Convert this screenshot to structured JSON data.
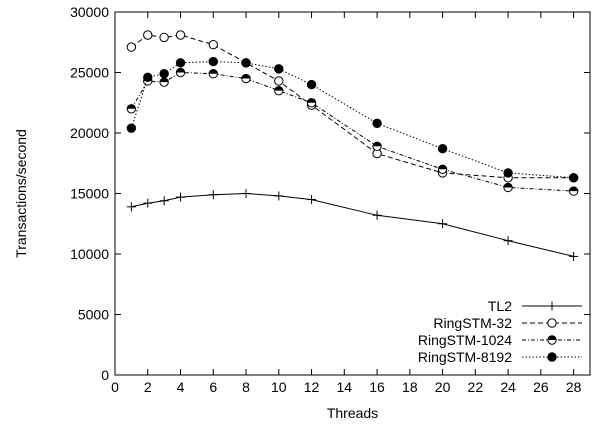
{
  "chart_data": {
    "type": "line",
    "title": "",
    "xlabel": "Threads",
    "ylabel": "Transactions/second",
    "xlim": [
      0,
      29
    ],
    "ylim": [
      0,
      30000
    ],
    "x_ticks": [
      0,
      2,
      4,
      6,
      8,
      10,
      12,
      14,
      16,
      18,
      20,
      22,
      24,
      26,
      28
    ],
    "y_ticks": [
      0,
      5000,
      10000,
      15000,
      20000,
      25000,
      30000
    ],
    "grid": false,
    "legend_position": "bottom-right",
    "x": [
      1,
      2,
      3,
      4,
      6,
      8,
      10,
      12,
      16,
      20,
      24,
      28
    ],
    "series": [
      {
        "name": "TL2",
        "marker": "plus",
        "line": "solid",
        "values": [
          13900,
          14200,
          14400,
          14700,
          14900,
          15000,
          14800,
          14500,
          13200,
          12500,
          11100,
          9800
        ]
      },
      {
        "name": "RingSTM-32",
        "marker": "open-circle",
        "line": "dashed",
        "values": [
          27100,
          28100,
          27900,
          28100,
          27300,
          25800,
          24300,
          22300,
          18300,
          16700,
          16300,
          16300
        ]
      },
      {
        "name": "RingSTM-1024",
        "marker": "half-circle",
        "line": "dashdot",
        "values": [
          22000,
          24300,
          24200,
          25000,
          24900,
          24500,
          23500,
          22500,
          18900,
          17000,
          15500,
          15200
        ]
      },
      {
        "name": "RingSTM-8192",
        "marker": "filled-circle",
        "line": "dotted",
        "values": [
          20400,
          24600,
          24900,
          25800,
          25900,
          25800,
          25300,
          24000,
          20800,
          18700,
          16700,
          16300
        ]
      }
    ]
  }
}
